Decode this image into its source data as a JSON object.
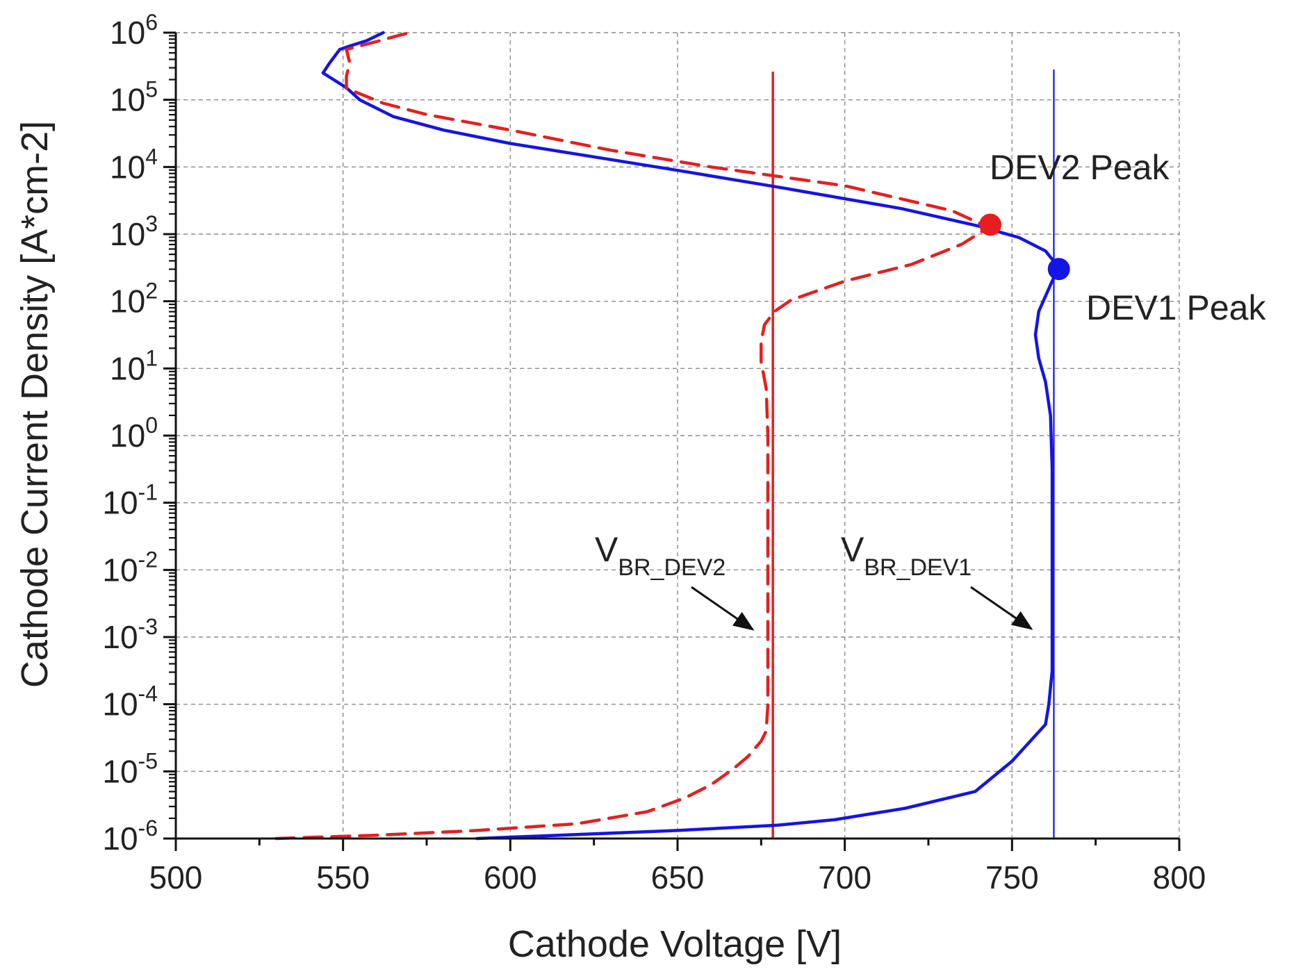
{
  "chart_data": {
    "type": "line",
    "xlabel": "Cathode Voltage [V]",
    "ylabel": "Cathode Current Density [A*cm-2]",
    "xlim": [
      500,
      800
    ],
    "ylim_log10": [
      -6,
      6
    ],
    "y_scale": "log",
    "grid": true,
    "x_ticks": [
      500,
      550,
      600,
      650,
      700,
      750,
      800
    ],
    "x_tick_labels": [
      "500",
      "550",
      "600",
      "650",
      "700",
      "750",
      "800"
    ],
    "y_ticks_log10": [
      -6,
      -5,
      -4,
      -3,
      -2,
      -1,
      0,
      1,
      2,
      3,
      4,
      5,
      6
    ],
    "y_tick_base": "10",
    "y_tick_exponents": [
      "-6",
      "-5",
      "-4",
      "-3",
      "-2",
      "-1",
      "0",
      "1",
      "2",
      "3",
      "4",
      "5",
      "6"
    ],
    "series": [
      {
        "name": "DEV1",
        "color": "#1414e6",
        "style": "solid",
        "points": [
          [
            590,
            -6
          ],
          [
            650,
            -5.88
          ],
          [
            680,
            -5.8
          ],
          [
            697,
            -5.72
          ],
          [
            718,
            -5.55
          ],
          [
            739,
            -5.3
          ],
          [
            750,
            -4.85
          ],
          [
            760,
            -4.3
          ],
          [
            761,
            -4.0
          ],
          [
            762,
            -3.5
          ],
          [
            762,
            -2.5
          ],
          [
            762,
            -1.5
          ],
          [
            762,
            -0.5
          ],
          [
            761.5,
            0.3
          ],
          [
            760,
            0.8
          ],
          [
            758,
            1.15
          ],
          [
            757,
            1.5
          ],
          [
            758,
            1.85
          ],
          [
            762,
            2.3
          ],
          [
            764,
            2.5
          ],
          [
            760,
            2.75
          ],
          [
            752,
            2.95
          ],
          [
            740,
            3.12
          ],
          [
            717,
            3.38
          ],
          [
            680,
            3.7
          ],
          [
            650,
            3.95
          ],
          [
            600,
            4.35
          ],
          [
            580,
            4.55
          ],
          [
            565,
            4.75
          ],
          [
            555,
            5.0
          ],
          [
            551,
            5.18
          ],
          [
            544,
            5.4
          ],
          [
            546,
            5.55
          ],
          [
            549,
            5.75
          ],
          [
            552,
            5.8
          ],
          [
            557,
            5.88
          ],
          [
            562,
            6
          ]
        ]
      },
      {
        "name": "DEV2",
        "color": "#e81e1e",
        "style": "dashed",
        "points": [
          [
            530,
            -6
          ],
          [
            560,
            -5.95
          ],
          [
            590,
            -5.88
          ],
          [
            620,
            -5.78
          ],
          [
            641,
            -5.6
          ],
          [
            652,
            -5.4
          ],
          [
            660,
            -5.2
          ],
          [
            667,
            -4.95
          ],
          [
            671,
            -4.78
          ],
          [
            675,
            -4.55
          ],
          [
            676.5,
            -4.4
          ],
          [
            677,
            -4.0
          ],
          [
            677,
            -3.0
          ],
          [
            677,
            -2.0
          ],
          [
            677,
            -1.0
          ],
          [
            677,
            0.0
          ],
          [
            676.5,
            0.7
          ],
          [
            675,
            1.1
          ],
          [
            675,
            1.4
          ],
          [
            676,
            1.65
          ],
          [
            679,
            1.85
          ],
          [
            684,
            2.02
          ],
          [
            700,
            2.3
          ],
          [
            720,
            2.55
          ],
          [
            735,
            2.85
          ],
          [
            743,
            3.1
          ],
          [
            732,
            3.35
          ],
          [
            700,
            3.72
          ],
          [
            660,
            4.0
          ],
          [
            630,
            4.25
          ],
          [
            600,
            4.55
          ],
          [
            575,
            4.78
          ],
          [
            562,
            4.95
          ],
          [
            551,
            5.17
          ],
          [
            551,
            5.35
          ],
          [
            552,
            5.55
          ],
          [
            551,
            5.75
          ],
          [
            561,
            5.88
          ],
          [
            566,
            5.95
          ],
          [
            570,
            6
          ]
        ]
      }
    ],
    "vertical_lines": [
      {
        "name": "V_BR_DEV2",
        "x": 678.5,
        "color": "#e81e1e",
        "from_log10": -6,
        "to_log10": 5.42
      },
      {
        "name": "V_BR_DEV1",
        "x": 762.5,
        "color": "#1414e6",
        "from_log10": -6,
        "to_log10": 5.45
      }
    ],
    "peak_markers": [
      {
        "name": "DEV2 Peak",
        "x": 743.5,
        "y_log10": 3.14,
        "color": "#e81e1e"
      },
      {
        "name": "DEV1 Peak",
        "x": 764,
        "y_log10": 2.48,
        "color": "#1414e6"
      }
    ],
    "annotations": {
      "dev2_peak": "DEV2 Peak",
      "dev1_peak": "DEV1 Peak",
      "vbr_dev2_main": "V",
      "vbr_dev2_sub": "BR_DEV2",
      "vbr_dev1_main": "V",
      "vbr_dev1_sub": "BR_DEV1"
    }
  }
}
